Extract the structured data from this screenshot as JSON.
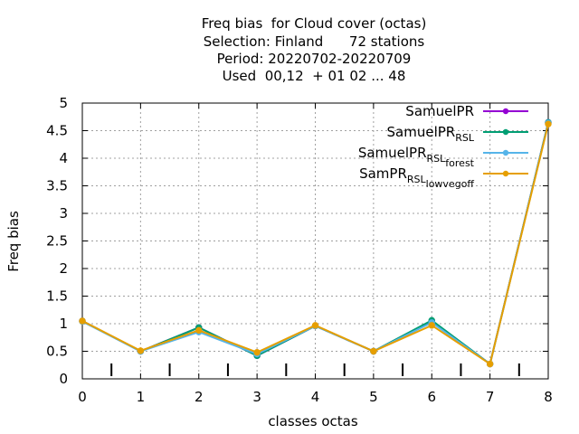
{
  "title_lines": [
    "Freq bias  for Cloud cover (octas)",
    "Selection: Finland      72 stations",
    "Period: 20220702-20220709",
    "Used  00,12  + 01 02 ... 48"
  ],
  "chart_data": {
    "type": "line",
    "xlabel": "classes octas",
    "ylabel": "Freq bias",
    "xlim": [
      0,
      8
    ],
    "ylim": [
      0,
      5
    ],
    "x": [
      0,
      1,
      2,
      3,
      4,
      5,
      6,
      7,
      8
    ],
    "xticks": [
      "0",
      "1",
      "2",
      "3",
      "4",
      "5",
      "6",
      "7",
      "8"
    ],
    "yticks": [
      "0",
      "0.5",
      "1",
      "1.5",
      "2",
      "2.5",
      "3",
      "3.5",
      "4",
      "4.5",
      "5"
    ],
    "grid": true,
    "legend_position": "top-right",
    "extra_bottom_ticks": [
      0.5,
      1.5,
      2.5,
      3.5,
      4.5,
      5.5,
      6.5,
      7.5
    ],
    "series": [
      {
        "name": "SamuelPR",
        "color": "#9400d3",
        "values": [
          1.05,
          0.5,
          0.93,
          0.42,
          0.96,
          0.5,
          1.05,
          0.27,
          4.65
        ]
      },
      {
        "name": "SamuelPR_RSL",
        "color": "#009e73",
        "values": [
          1.05,
          0.5,
          0.93,
          0.42,
          0.96,
          0.5,
          1.06,
          0.27,
          4.65
        ]
      },
      {
        "name": "SamuelPR_RSL_forest",
        "color": "#56b4e9",
        "values": [
          1.04,
          0.5,
          0.85,
          0.45,
          0.96,
          0.5,
          1.02,
          0.27,
          4.64
        ]
      },
      {
        "name": "SamPR_RSL_lowvegoff",
        "color": "#e69f00",
        "values": [
          1.05,
          0.51,
          0.88,
          0.48,
          0.97,
          0.5,
          0.97,
          0.27,
          4.62
        ]
      }
    ]
  }
}
